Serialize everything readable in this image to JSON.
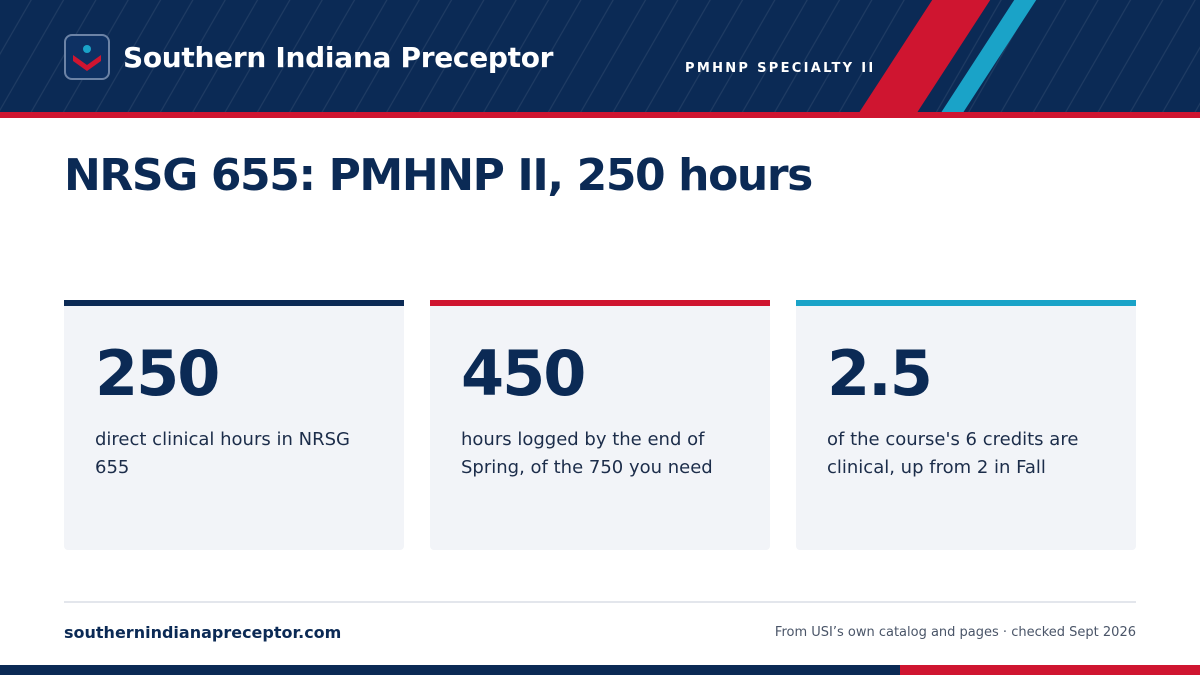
{
  "header": {
    "brand": "Southern Indiana Preceptor",
    "logo_icon": "chevron-person-icon",
    "specialty": "PMHNP SPECIALTY II"
  },
  "title": "NRSG 655: PMHNP II, 250 hours",
  "stats": [
    {
      "value": "250",
      "description": "direct clinical hours in NRSG 655",
      "accent": "#0b2a55"
    },
    {
      "value": "450",
      "description": "hours logged by the end of Spring, of the 750 you need",
      "accent": "#cf1530"
    },
    {
      "value": "2.5",
      "description": "of the course's 6 credits are clinical, up from 2 in Fall",
      "accent": "#1aa3c8"
    }
  ],
  "footer": {
    "site": "southernindianapreceptor.com",
    "source": "From USI’s own catalog and pages · checked Sept 2026"
  },
  "colors": {
    "navy": "#0b2a55",
    "red": "#cf1530",
    "teal": "#1aa3c8",
    "card_bg": "#f2f4f8"
  }
}
